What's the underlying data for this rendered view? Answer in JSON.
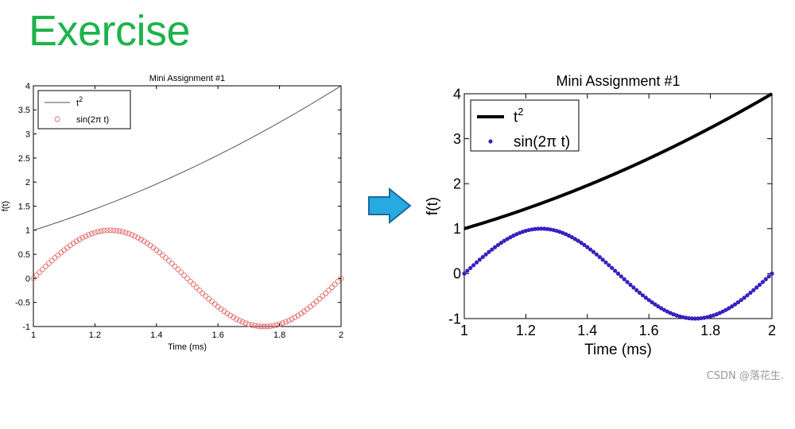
{
  "slide": {
    "title": "Exercise",
    "watermark": "CSDN @落花生.",
    "arrow_color": "#27a9e1"
  },
  "chart_data": [
    {
      "type": "line",
      "title": "Mini Assignment #1",
      "xlabel": "Time (ms)",
      "ylabel": "f(t)",
      "xlim": [
        1,
        2
      ],
      "ylim": [
        -1,
        4
      ],
      "xticks": [
        1,
        1.2,
        1.4,
        1.6,
        1.8,
        2
      ],
      "xtick_labels": [
        "1",
        "1.2",
        "1.4",
        "1.6",
        "1.8",
        "2"
      ],
      "yticks": [
        -1,
        -0.5,
        0,
        0.5,
        1,
        1.5,
        2,
        2.5,
        3,
        3.5,
        4
      ],
      "ytick_labels": [
        "-1",
        "-0.5",
        "0",
        "0.5",
        "1",
        "1.5",
        "2",
        "2.5",
        "3",
        "3.5",
        "4"
      ],
      "grid": false,
      "legend_position": "top-left",
      "legend": [
        {
          "base": "t",
          "sup": "2",
          "text": ""
        },
        {
          "base": "",
          "sup": "",
          "text": "sin(2π t)"
        }
      ],
      "series": [
        {
          "name": "t²",
          "style": "line",
          "color": "#555555",
          "line_width": 1,
          "x_range": [
            1,
            2
          ],
          "points": 101,
          "function": "t^2"
        },
        {
          "name": "sin(2π t)",
          "style": "circles",
          "color": "#e36c6c",
          "marker_size": 3,
          "x_range": [
            1,
            2
          ],
          "points": 101,
          "function": "sin(2πt)"
        }
      ]
    },
    {
      "type": "line",
      "title": "Mini Assignment #1",
      "xlabel": "Time (ms)",
      "ylabel": "f(t)",
      "xlim": [
        1,
        2
      ],
      "ylim": [
        -1,
        4
      ],
      "xticks": [
        1,
        1.2,
        1.4,
        1.6,
        1.8,
        2
      ],
      "xtick_labels": [
        "1",
        "1.2",
        "1.4",
        "1.6",
        "1.8",
        "2"
      ],
      "yticks": [
        -1,
        0,
        1,
        2,
        3,
        4
      ],
      "ytick_labels": [
        "-1",
        "0",
        "1",
        "2",
        "3",
        "4"
      ],
      "grid": false,
      "legend_position": "top-left",
      "legend": [
        {
          "base": "t",
          "sup": "2",
          "text": ""
        },
        {
          "base": "",
          "sup": "",
          "text": "sin(2π t)"
        }
      ],
      "series": [
        {
          "name": "t²",
          "style": "line",
          "color": "#000000",
          "line_width": 4,
          "x_range": [
            1,
            2
          ],
          "points": 101,
          "function": "t^2"
        },
        {
          "name": "sin(2π t)",
          "style": "dots",
          "color": "#3b1fbf",
          "marker_size": 2.6,
          "x_range": [
            1,
            2
          ],
          "points": 101,
          "function": "sin(2πt)"
        }
      ]
    }
  ]
}
